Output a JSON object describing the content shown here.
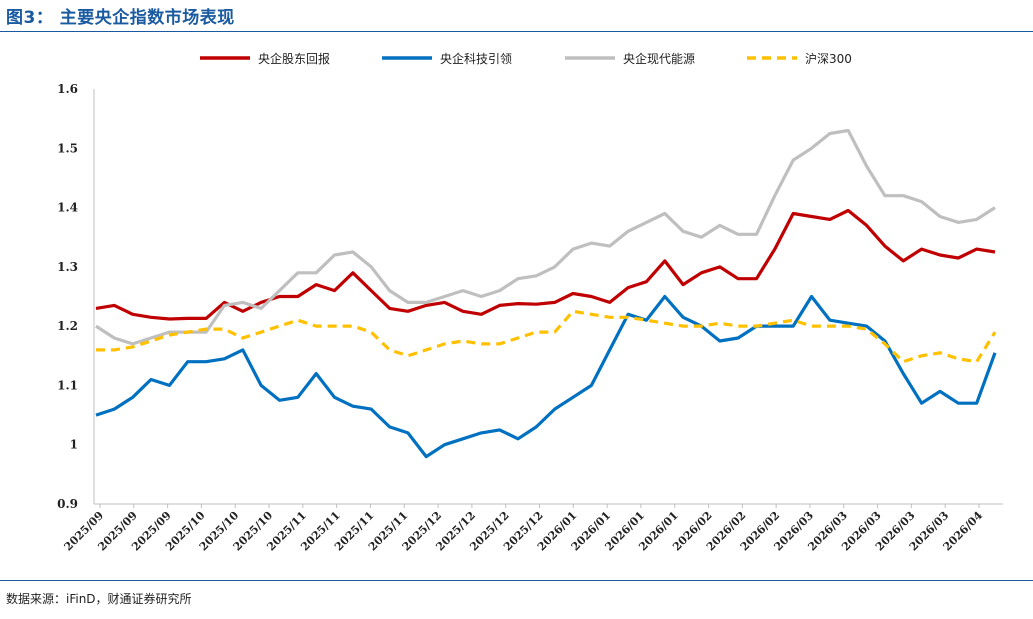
{
  "header": {
    "title": "图3： 主要央企指数市场表现"
  },
  "footer": {
    "source": "数据来源：iFinD，财通证券研究所"
  },
  "chart_data": {
    "type": "line",
    "title": "",
    "xlabel": "",
    "ylabel": "",
    "ylim": [
      0.9,
      1.6
    ],
    "yticks": [
      "0.9",
      "1",
      "1.1",
      "1.2",
      "1.3",
      "1.4",
      "1.5",
      "1.6"
    ],
    "grid": false,
    "legend_position": "top",
    "x_ticks": [
      "2025/09",
      "2025/09",
      "2025/09",
      "2025/10",
      "2025/10",
      "2025/10",
      "2025/11",
      "2025/11",
      "2025/11",
      "2025/11",
      "2025/12",
      "2025/12",
      "2025/12",
      "2025/12",
      "2026/01",
      "2026/01",
      "2026/01",
      "2026/01",
      "2026/02",
      "2026/02",
      "2026/02",
      "2026/03",
      "2026/03",
      "2026/03",
      "2026/03",
      "2026/03",
      "2026/04"
    ],
    "series": [
      {
        "name": "央企股东回报",
        "color": "#c00000",
        "dashed": false,
        "values": [
          1.23,
          1.235,
          1.22,
          1.215,
          1.212,
          1.213,
          1.213,
          1.24,
          1.225,
          1.24,
          1.25,
          1.25,
          1.27,
          1.26,
          1.29,
          1.26,
          1.23,
          1.225,
          1.235,
          1.24,
          1.225,
          1.22,
          1.235,
          1.238,
          1.237,
          1.24,
          1.255,
          1.25,
          1.24,
          1.265,
          1.275,
          1.31,
          1.27,
          1.29,
          1.3,
          1.28,
          1.28,
          1.33,
          1.39,
          1.385,
          1.38,
          1.395,
          1.37,
          1.335,
          1.31,
          1.33,
          1.32,
          1.315,
          1.33,
          1.325
        ]
      },
      {
        "name": "央企科技引领",
        "color": "#0070c0",
        "dashed": false,
        "values": [
          1.05,
          1.06,
          1.08,
          1.11,
          1.1,
          1.14,
          1.14,
          1.145,
          1.16,
          1.1,
          1.075,
          1.08,
          1.12,
          1.08,
          1.065,
          1.06,
          1.03,
          1.02,
          0.98,
          1.0,
          1.01,
          1.02,
          1.025,
          1.01,
          1.03,
          1.06,
          1.08,
          1.1,
          1.16,
          1.22,
          1.21,
          1.25,
          1.215,
          1.2,
          1.175,
          1.18,
          1.2,
          1.2,
          1.2,
          1.25,
          1.21,
          1.205,
          1.2,
          1.175,
          1.12,
          1.07,
          1.09,
          1.07,
          1.07,
          1.155
        ]
      },
      {
        "name": "央企现代能源",
        "color": "#bfbfbf",
        "dashed": false,
        "values": [
          1.2,
          1.18,
          1.17,
          1.18,
          1.19,
          1.19,
          1.19,
          1.235,
          1.24,
          1.23,
          1.26,
          1.29,
          1.29,
          1.32,
          1.325,
          1.3,
          1.26,
          1.24,
          1.24,
          1.25,
          1.26,
          1.25,
          1.26,
          1.28,
          1.285,
          1.3,
          1.33,
          1.34,
          1.335,
          1.36,
          1.375,
          1.39,
          1.36,
          1.35,
          1.37,
          1.355,
          1.355,
          1.42,
          1.48,
          1.5,
          1.525,
          1.53,
          1.47,
          1.42,
          1.42,
          1.41,
          1.385,
          1.375,
          1.38,
          1.4
        ]
      },
      {
        "name": "沪深300",
        "color": "#ffc000",
        "dashed": true,
        "values": [
          1.16,
          1.16,
          1.165,
          1.175,
          1.185,
          1.19,
          1.195,
          1.195,
          1.18,
          1.19,
          1.2,
          1.21,
          1.2,
          1.2,
          1.2,
          1.19,
          1.16,
          1.15,
          1.16,
          1.17,
          1.175,
          1.17,
          1.17,
          1.18,
          1.19,
          1.19,
          1.225,
          1.22,
          1.215,
          1.215,
          1.21,
          1.205,
          1.2,
          1.2,
          1.205,
          1.2,
          1.2,
          1.205,
          1.21,
          1.2,
          1.2,
          1.2,
          1.195,
          1.17,
          1.14,
          1.15,
          1.155,
          1.145,
          1.14,
          1.19
        ]
      }
    ]
  }
}
